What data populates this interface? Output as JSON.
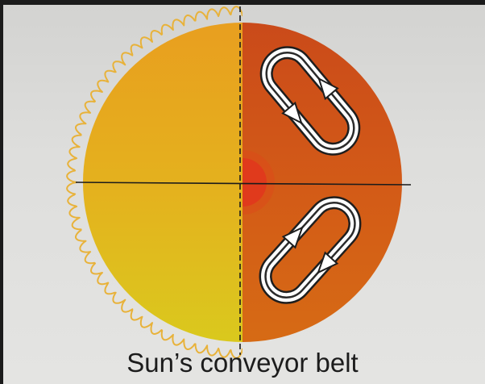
{
  "caption": "Sun’s conveyor belt",
  "colors": {
    "background": "#dcdcda",
    "sun_left_top": "#e7a41e",
    "sun_left_bottom": "#dcc21c",
    "sun_right": "#cf5016",
    "core": "#e03a1c",
    "corona_outline": "#e8b23a",
    "axis_line": "#1a1a1a",
    "flow_loop_fill": "#ffffff",
    "flow_loop_edge": "#222222"
  },
  "icons": {
    "north_flow": "conveyor-loop-arrows",
    "south_flow": "conveyor-loop-arrows"
  }
}
